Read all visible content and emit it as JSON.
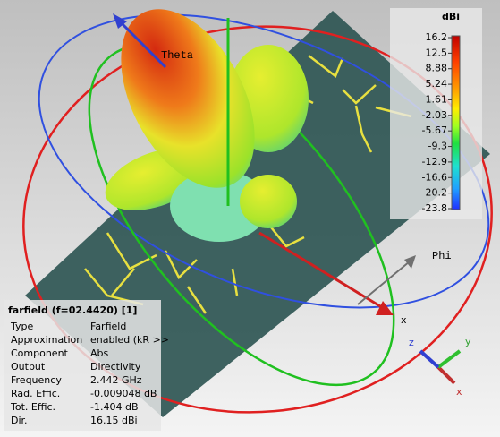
{
  "viewport": {
    "theta_label": "Theta",
    "phi_label": "Phi",
    "x_label": "x"
  },
  "legend": {
    "unit": "dBi",
    "ticks": [
      "16.2",
      "12.5",
      "8.88",
      "5.24",
      "1.61",
      "-2.03",
      "-5.67",
      "-9.3",
      "-12.9",
      "-16.6",
      "-20.2",
      "-23.8"
    ]
  },
  "info_panel": {
    "title": "farfield (f=02.4420) [1]",
    "rows": [
      [
        "Type",
        "Farfield"
      ],
      [
        "Approximation",
        "enabled (kR >>"
      ],
      [
        "Component",
        "Abs"
      ],
      [
        "Output",
        "Directivity"
      ],
      [
        "Frequency",
        "2.442 GHz"
      ],
      [
        "Rad. Effic.",
        "-0.009048 dB"
      ],
      [
        "Tot. Effic.",
        "-1.404 dB"
      ],
      [
        "Dir.",
        "16.15 dBi"
      ]
    ]
  },
  "axes_triad": {
    "x": "x",
    "y": "y",
    "z": "z"
  }
}
